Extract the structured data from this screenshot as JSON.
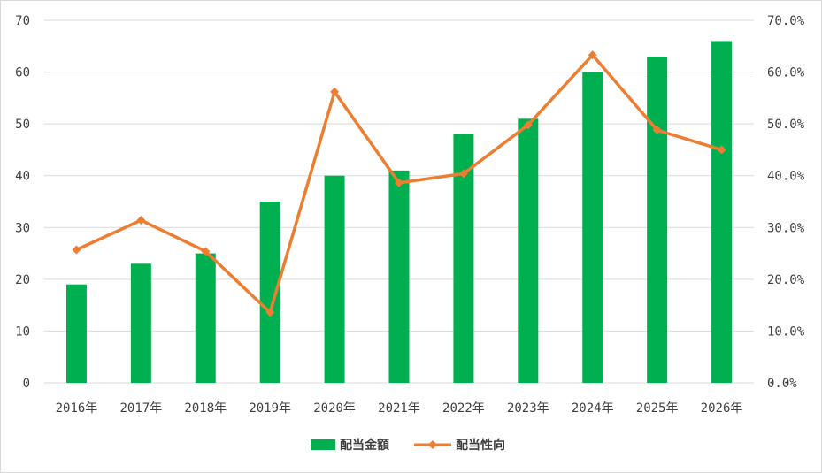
{
  "chart_data": {
    "type": "bar+line",
    "categories": [
      "2016年",
      "2017年",
      "2018年",
      "2019年",
      "2020年",
      "2021年",
      "2022年",
      "2023年",
      "2024年",
      "2025年",
      "2026年"
    ],
    "series": [
      {
        "name": "配当金額",
        "type": "bar",
        "axis": "left",
        "color": "#00b050",
        "values": [
          19,
          23,
          25,
          35,
          40,
          41,
          48,
          51,
          60,
          63,
          66
        ]
      },
      {
        "name": "配当性向",
        "type": "line",
        "axis": "right",
        "color": "#ed7d31",
        "values": [
          25.7,
          31.4,
          25.4,
          13.6,
          56.2,
          38.6,
          40.4,
          49.8,
          63.3,
          48.8,
          45.0
        ]
      }
    ],
    "y_left": {
      "lim": [
        0,
        70
      ],
      "ticks": [
        0,
        10,
        20,
        30,
        40,
        50,
        60,
        70
      ],
      "tick_labels": [
        "0",
        "10",
        "20",
        "30",
        "40",
        "50",
        "60",
        "70"
      ]
    },
    "y_right": {
      "lim": [
        0,
        70
      ],
      "ticks": [
        0,
        10,
        20,
        30,
        40,
        50,
        60,
        70
      ],
      "tick_labels": [
        "0.0%",
        "10.0%",
        "20.0%",
        "30.0%",
        "40.0%",
        "50.0%",
        "60.0%",
        "70.0%"
      ]
    },
    "grid": true,
    "legend": "bottom-center",
    "title": "",
    "xlabel": "",
    "ylabel": ""
  }
}
